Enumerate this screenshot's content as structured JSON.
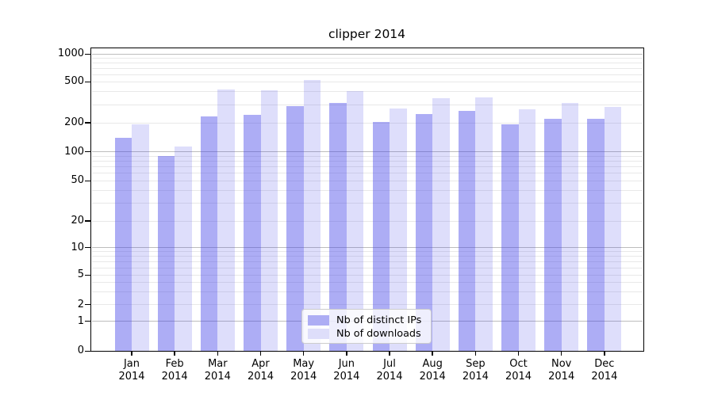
{
  "chart_data": {
    "type": "bar",
    "title": "clipper 2014",
    "categories": [
      {
        "month": "Jan",
        "year": "2014"
      },
      {
        "month": "Feb",
        "year": "2014"
      },
      {
        "month": "Mar",
        "year": "2014"
      },
      {
        "month": "Apr",
        "year": "2014"
      },
      {
        "month": "May",
        "year": "2014"
      },
      {
        "month": "Jun",
        "year": "2014"
      },
      {
        "month": "Jul",
        "year": "2014"
      },
      {
        "month": "Aug",
        "year": "2014"
      },
      {
        "month": "Sep",
        "year": "2014"
      },
      {
        "month": "Oct",
        "year": "2014"
      },
      {
        "month": "Nov",
        "year": "2014"
      },
      {
        "month": "Dec",
        "year": "2014"
      }
    ],
    "series": [
      {
        "name": "Nb of distinct IPs",
        "fill": "rgba(60,60,230,0.42)",
        "legend_color": "#adadf4",
        "values": [
          140,
          91,
          232,
          239,
          288,
          310,
          205,
          243,
          260,
          194,
          218,
          218
        ]
      },
      {
        "name": "Nb of downloads",
        "fill": "rgba(60,60,230,0.17)",
        "legend_color": "#dedefa",
        "values": [
          192,
          113,
          420,
          412,
          525,
          405,
          277,
          347,
          350,
          268,
          312,
          283
        ]
      }
    ],
    "yticks": [
      1000,
      500,
      200,
      100,
      50,
      20,
      10,
      5,
      2,
      1,
      0
    ],
    "ylim": [
      0,
      1000
    ],
    "yscale": "symlog",
    "xlabel": "",
    "ylabel": "",
    "grid": true,
    "legend_position": "lower center",
    "colors": {
      "grid_major": "#bdbdbd",
      "grid_minor": "#e8e8e8",
      "spine": "#000000",
      "text": "#000000",
      "legend_bg": "rgba(255,255,255,0.8)",
      "legend_border": "#cccccc"
    }
  }
}
